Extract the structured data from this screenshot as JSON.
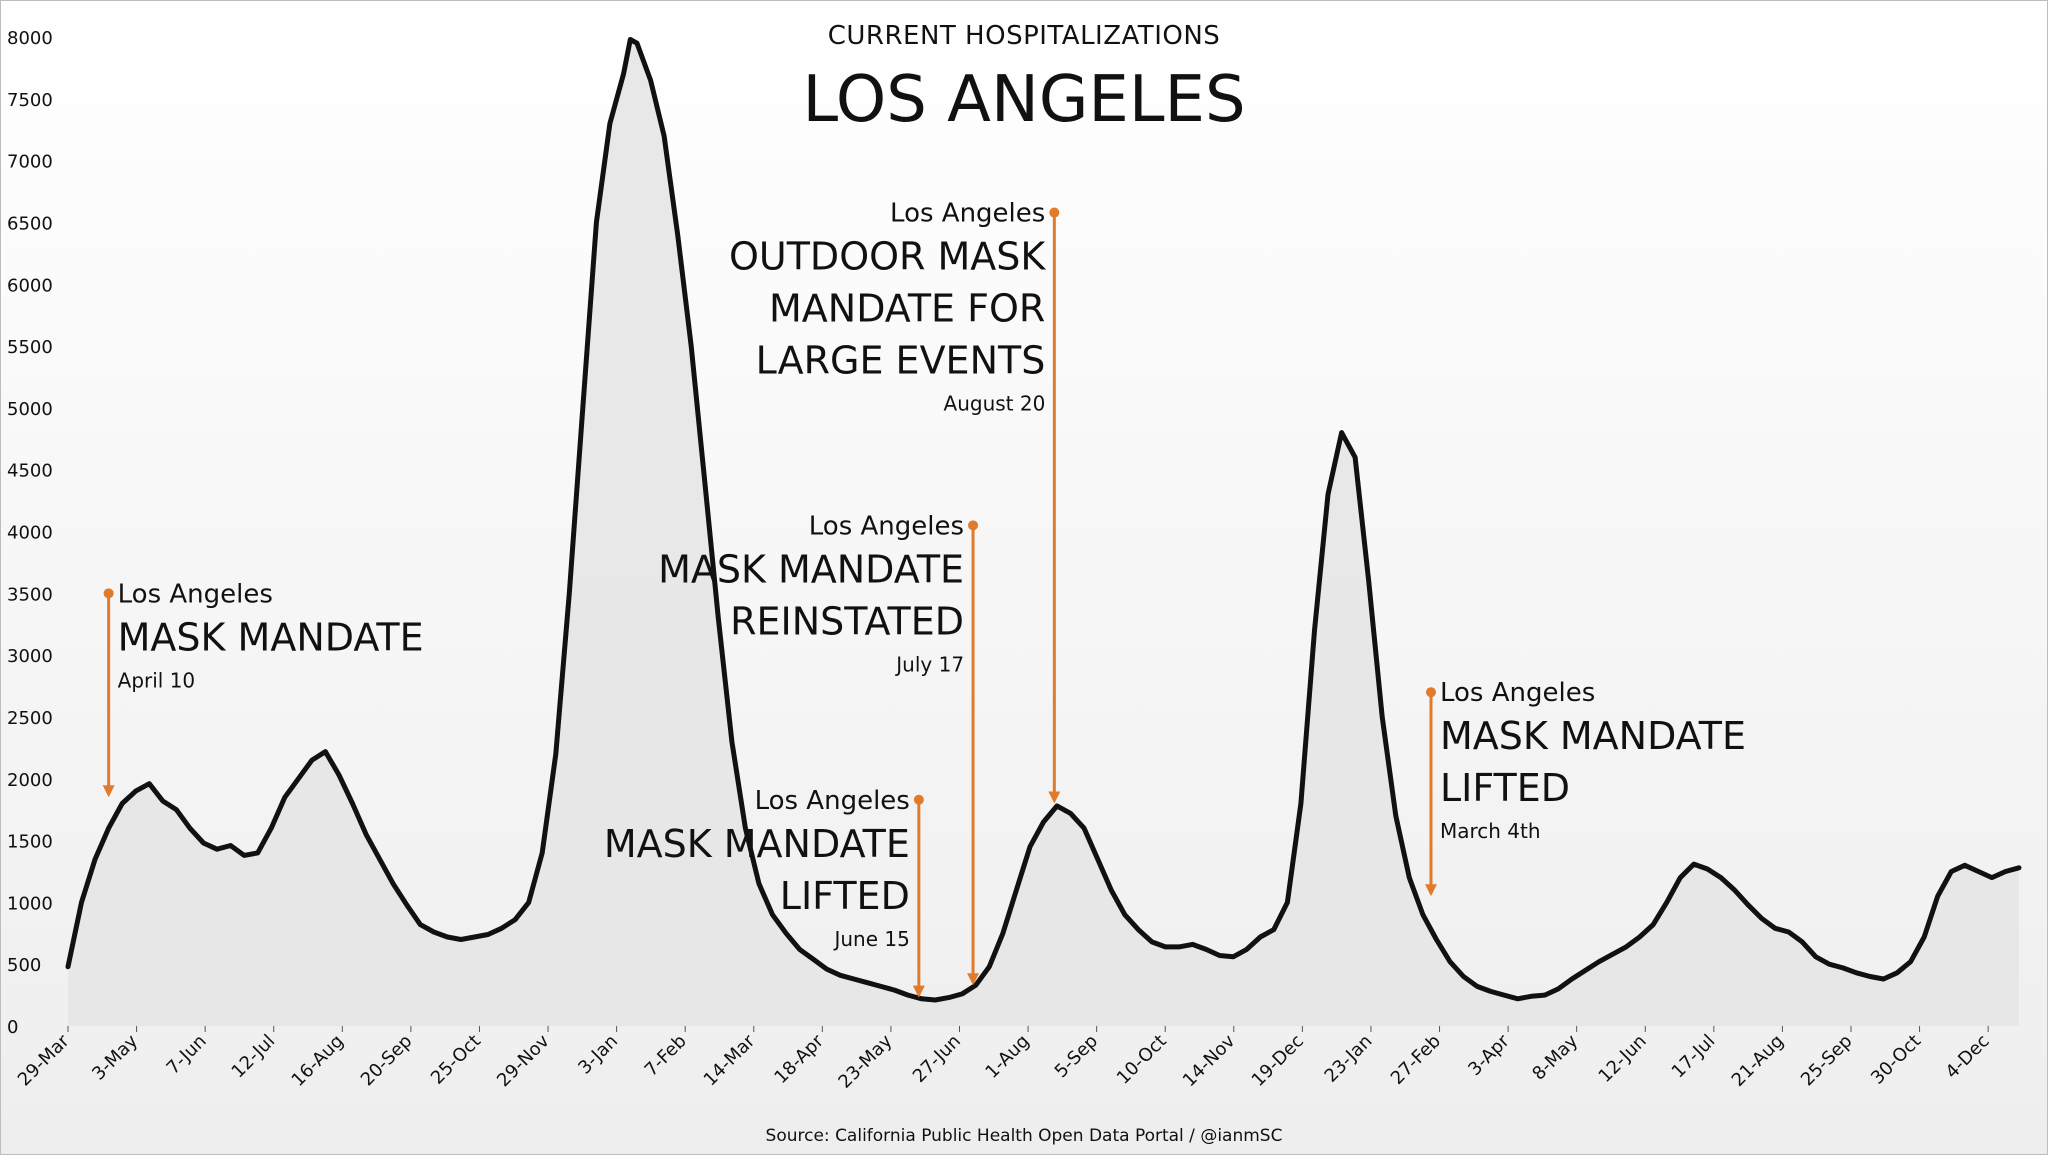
{
  "chart_data": {
    "type": "area",
    "title": "LOS ANGELES",
    "subtitle": "CURRENT HOSPITALIZATIONS",
    "source": "Source: California Public Health Open Data Portal / @ianmSC",
    "ylim": [
      0,
      8000
    ],
    "yticks": [
      0,
      500,
      1000,
      1500,
      2000,
      2500,
      3000,
      3500,
      4000,
      4500,
      5000,
      5500,
      6000,
      6500,
      7000,
      7500,
      8000
    ],
    "xticks": [
      "29-Mar",
      "3-May",
      "7-Jun",
      "12-Jul",
      "16-Aug",
      "20-Sep",
      "25-Oct",
      "29-Nov",
      "3-Jan",
      "7-Feb",
      "14-Mar",
      "18-Apr",
      "23-May",
      "27-Jun",
      "1-Aug",
      "5-Sep",
      "10-Oct",
      "14-Nov",
      "19-Dec",
      "23-Jan",
      "27-Feb",
      "3-Apr",
      "8-May",
      "12-Jun",
      "17-Jul",
      "21-Aug",
      "25-Sep",
      "30-Oct",
      "4-Dec"
    ],
    "series": [
      {
        "name": "Los Angeles current hospitalizations",
        "points": [
          [
            0,
            480
          ],
          [
            1,
            1000
          ],
          [
            2,
            1350
          ],
          [
            3,
            1600
          ],
          [
            4,
            1800
          ],
          [
            5,
            1900
          ],
          [
            6,
            1960
          ],
          [
            7,
            1820
          ],
          [
            8,
            1750
          ],
          [
            9,
            1600
          ],
          [
            10,
            1480
          ],
          [
            11,
            1430
          ],
          [
            12,
            1460
          ],
          [
            13,
            1380
          ],
          [
            14,
            1400
          ],
          [
            15,
            1600
          ],
          [
            16,
            1850
          ],
          [
            17,
            2000
          ],
          [
            18,
            2150
          ],
          [
            19,
            2220
          ],
          [
            20,
            2030
          ],
          [
            21,
            1800
          ],
          [
            22,
            1550
          ],
          [
            23,
            1350
          ],
          [
            24,
            1150
          ],
          [
            25,
            980
          ],
          [
            26,
            820
          ],
          [
            27,
            760
          ],
          [
            28,
            720
          ],
          [
            29,
            700
          ],
          [
            30,
            720
          ],
          [
            31,
            740
          ],
          [
            32,
            790
          ],
          [
            33,
            860
          ],
          [
            34,
            1000
          ],
          [
            35,
            1400
          ],
          [
            36,
            2200
          ],
          [
            37,
            3500
          ],
          [
            38,
            5000
          ],
          [
            39,
            6500
          ],
          [
            40,
            7300
          ],
          [
            41,
            7700
          ],
          [
            41.5,
            7980
          ],
          [
            42,
            7950
          ],
          [
            43,
            7650
          ],
          [
            44,
            7200
          ],
          [
            45,
            6400
          ],
          [
            46,
            5500
          ],
          [
            47,
            4400
          ],
          [
            48,
            3300
          ],
          [
            49,
            2300
          ],
          [
            50,
            1600
          ],
          [
            51,
            1150
          ],
          [
            52,
            900
          ],
          [
            53,
            750
          ],
          [
            54,
            620
          ],
          [
            55,
            540
          ],
          [
            56,
            460
          ],
          [
            57,
            410
          ],
          [
            58,
            380
          ],
          [
            59,
            350
          ],
          [
            60,
            320
          ],
          [
            61,
            290
          ],
          [
            62,
            250
          ],
          [
            63,
            220
          ],
          [
            64,
            210
          ],
          [
            65,
            230
          ],
          [
            66,
            260
          ],
          [
            67,
            330
          ],
          [
            68,
            480
          ],
          [
            69,
            750
          ],
          [
            70,
            1100
          ],
          [
            71,
            1450
          ],
          [
            72,
            1650
          ],
          [
            73,
            1780
          ],
          [
            74,
            1720
          ],
          [
            75,
            1600
          ],
          [
            76,
            1350
          ],
          [
            77,
            1100
          ],
          [
            78,
            900
          ],
          [
            79,
            780
          ],
          [
            80,
            680
          ],
          [
            81,
            640
          ],
          [
            82,
            640
          ],
          [
            83,
            660
          ],
          [
            84,
            620
          ],
          [
            85,
            570
          ],
          [
            86,
            560
          ],
          [
            87,
            620
          ],
          [
            88,
            720
          ],
          [
            89,
            780
          ],
          [
            90,
            1000
          ],
          [
            91,
            1800
          ],
          [
            92,
            3200
          ],
          [
            93,
            4300
          ],
          [
            94,
            4800
          ],
          [
            95,
            4600
          ],
          [
            96,
            3600
          ],
          [
            97,
            2500
          ],
          [
            98,
            1700
          ],
          [
            99,
            1200
          ],
          [
            100,
            900
          ],
          [
            101,
            700
          ],
          [
            102,
            520
          ],
          [
            103,
            400
          ],
          [
            104,
            320
          ],
          [
            105,
            280
          ],
          [
            106,
            250
          ],
          [
            107,
            220
          ],
          [
            108,
            240
          ],
          [
            109,
            250
          ],
          [
            110,
            300
          ],
          [
            111,
            380
          ],
          [
            112,
            450
          ],
          [
            113,
            520
          ],
          [
            114,
            580
          ],
          [
            115,
            640
          ],
          [
            116,
            720
          ],
          [
            117,
            820
          ],
          [
            118,
            1000
          ],
          [
            119,
            1200
          ],
          [
            120,
            1310
          ],
          [
            121,
            1270
          ],
          [
            122,
            1200
          ],
          [
            123,
            1100
          ],
          [
            124,
            980
          ],
          [
            125,
            870
          ],
          [
            126,
            790
          ],
          [
            127,
            760
          ],
          [
            128,
            680
          ],
          [
            129,
            560
          ],
          [
            130,
            500
          ],
          [
            131,
            470
          ],
          [
            132,
            430
          ],
          [
            133,
            400
          ],
          [
            134,
            380
          ],
          [
            135,
            430
          ],
          [
            136,
            520
          ],
          [
            137,
            720
          ],
          [
            138,
            1050
          ],
          [
            139,
            1250
          ],
          [
            140,
            1300
          ],
          [
            141,
            1250
          ],
          [
            142,
            1200
          ],
          [
            143,
            1250
          ],
          [
            144,
            1280
          ]
        ]
      }
    ],
    "annotations": [
      {
        "place": "Los Angeles",
        "lines": [
          "MASK MANDATE"
        ],
        "date": "April 10",
        "x": 3,
        "y": 1850,
        "y_top": 3500
      },
      {
        "place": "Los Angeles",
        "lines": [
          "MASK MANDATE",
          "LIFTED"
        ],
        "date": "June 15",
        "x": 62.8,
        "y": 230,
        "y_top": 1830
      },
      {
        "place": "Los Angeles",
        "lines": [
          "MASK MANDATE",
          "REINSTATED"
        ],
        "date": "July 17",
        "x": 66.8,
        "y": 330,
        "y_top": 4050
      },
      {
        "place": "Los Angeles",
        "lines": [
          "OUTDOOR MASK",
          "MANDATE FOR",
          "LARGE EVENTS"
        ],
        "date": "August 20",
        "x": 72.8,
        "y": 1800,
        "y_top": 6580
      },
      {
        "place": "Los Angeles",
        "lines": [
          "MASK MANDATE",
          "LIFTED"
        ],
        "date": "March 4th",
        "x": 100.6,
        "y": 1050,
        "y_top": 2700
      }
    ],
    "colors": {
      "line": "#111111",
      "fill": "#e6e6e6",
      "annotation": "#e07b2e"
    }
  }
}
